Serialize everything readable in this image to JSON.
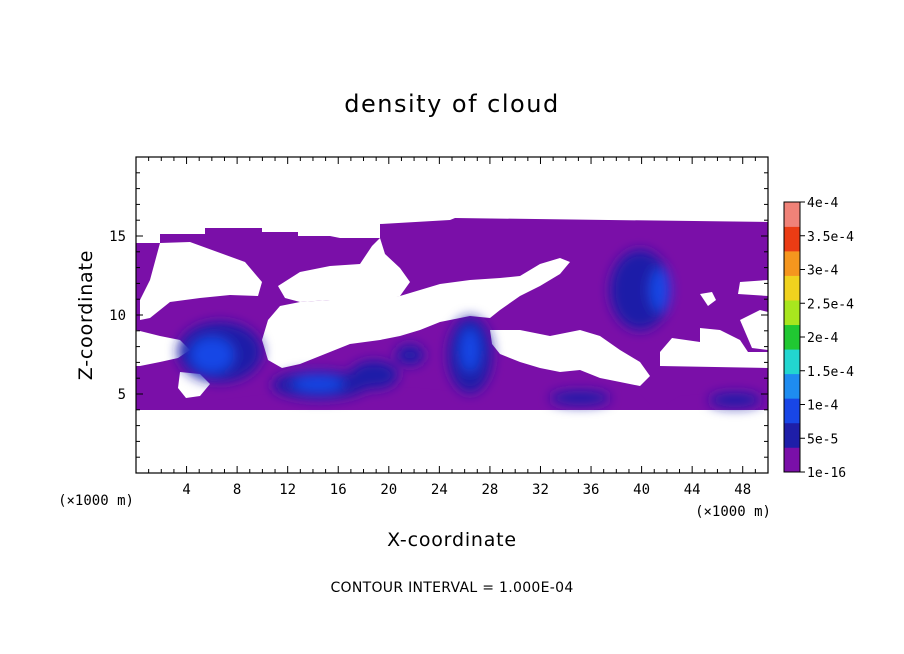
{
  "chart_data": {
    "type": "heatmap",
    "title": "density of cloud",
    "xlabel": "X-coordinate",
    "ylabel": "Z-coordinate",
    "x_unit": "(×1000 m)",
    "xlim": [
      0,
      50
    ],
    "ylim": [
      0,
      20
    ],
    "x_ticks": [
      4,
      8,
      12,
      16,
      20,
      24,
      28,
      32,
      36,
      40,
      44,
      48
    ],
    "y_ticks": [
      5,
      10,
      15
    ],
    "colorbar": {
      "levels": [
        "1e-16",
        "5e-5",
        "1e-4",
        "1.5e-4",
        "2e-4",
        "2.5e-4",
        "3e-4",
        "3.5e-4",
        "4e-4"
      ],
      "colors": [
        "#7a0fa8",
        "#1e1ea8",
        "#1846e6",
        "#1e8cf0",
        "#22d6d0",
        "#20c832",
        "#a8e61e",
        "#f0d21e",
        "#f5961e",
        "#eb3c14",
        "#f08278"
      ]
    },
    "cloud_field": {
      "description_units": "km",
      "base_layer": {
        "z_bottom": 4.0,
        "z_top": 15.0,
        "value": "1e-16 to 5e-5"
      },
      "peak_regions": [
        {
          "x": 6.5,
          "z": 7.5,
          "value": "1e-4"
        },
        {
          "x": 14.5,
          "z": 5.5,
          "value": "1e-4"
        },
        {
          "x": 26.0,
          "z": 7.5,
          "value": "1e-4"
        },
        {
          "x": 39.5,
          "z": 11.0,
          "value": "1e-4"
        },
        {
          "x": 47.0,
          "z": 4.8,
          "value": "5e-5"
        }
      ]
    },
    "annotation": "CONTOUR INTERVAL = 1.000E-04"
  }
}
